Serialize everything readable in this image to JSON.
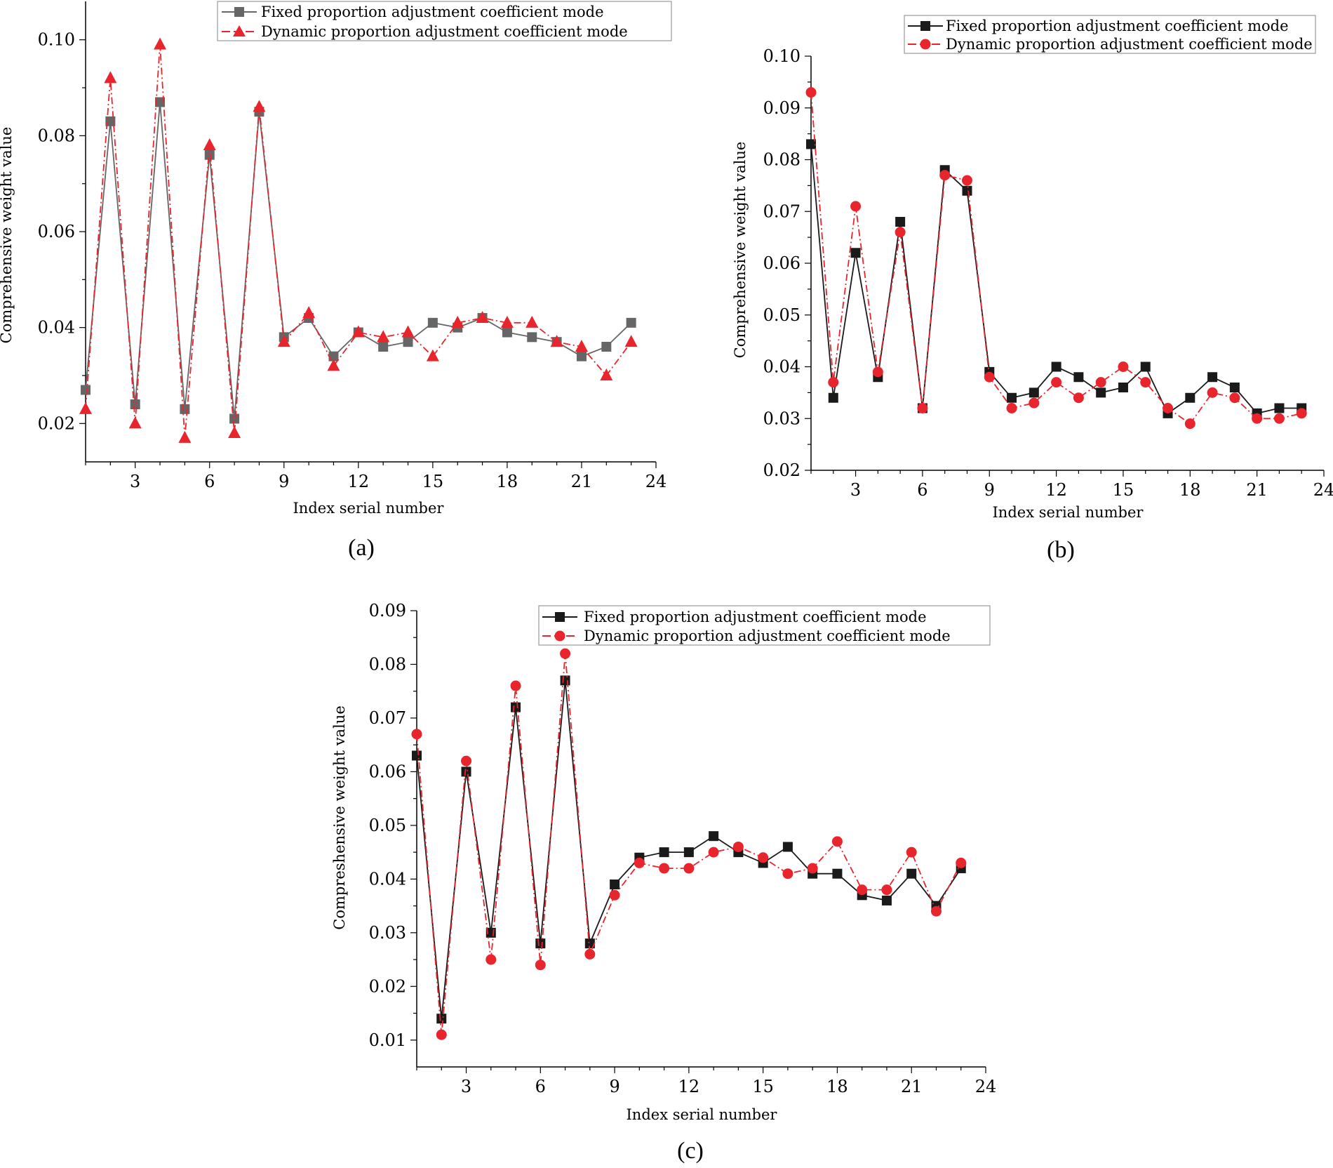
{
  "colors": {
    "fixed_a": "#666666",
    "fixed_bc": "#1a1a1a",
    "dynamic": "#e8242c",
    "axis": "#000000",
    "legend_border": "#999999"
  },
  "chart_data": [
    {
      "id": "a",
      "type": "line",
      "panel_label": "(a)",
      "xlabel": "Index serial number",
      "ylabel": "Comprehensive weight value",
      "xlim": [
        1,
        24
      ],
      "ylim": [
        0.012,
        0.108
      ],
      "xticks": [
        3,
        6,
        9,
        12,
        15,
        18,
        21,
        24
      ],
      "yticks": [
        0.02,
        0.04,
        0.06,
        0.08,
        0.1
      ],
      "ytick_labels": [
        "0.02",
        "0.04",
        "0.06",
        "0.08",
        "0.10"
      ],
      "legend_position": "top-right",
      "x": [
        1,
        2,
        3,
        4,
        5,
        6,
        7,
        8,
        9,
        10,
        11,
        12,
        13,
        14,
        15,
        16,
        17,
        18,
        19,
        20,
        21,
        22,
        23
      ],
      "series": [
        {
          "name": "Fixed proportion adjustment coefficient mode",
          "marker": "square",
          "line": "solid",
          "color": "#666666",
          "values": [
            0.027,
            0.083,
            0.024,
            0.087,
            0.023,
            0.076,
            0.021,
            0.085,
            0.038,
            0.042,
            0.034,
            0.039,
            0.036,
            0.037,
            0.041,
            0.04,
            0.042,
            0.039,
            0.038,
            0.037,
            0.034,
            0.036,
            0.041
          ]
        },
        {
          "name": "Dynamic proportion adjustment coefficient mode",
          "marker": "triangle",
          "line": "dashdot",
          "color": "#e8242c",
          "values": [
            0.023,
            0.092,
            0.02,
            0.099,
            0.017,
            0.078,
            0.018,
            0.086,
            0.037,
            0.043,
            0.032,
            0.039,
            0.038,
            0.039,
            0.034,
            0.041,
            0.042,
            0.041,
            0.041,
            0.037,
            0.036,
            0.03,
            0.037
          ]
        }
      ]
    },
    {
      "id": "b",
      "type": "line",
      "panel_label": "(b)",
      "xlabel": "Index serial number",
      "ylabel": "Comprehensive weight value",
      "xlim": [
        1,
        24
      ],
      "ylim": [
        0.02,
        0.1
      ],
      "xticks": [
        3,
        6,
        9,
        12,
        15,
        18,
        21,
        24
      ],
      "yticks": [
        0.02,
        0.03,
        0.04,
        0.05,
        0.06,
        0.07,
        0.08,
        0.09,
        0.1
      ],
      "ytick_labels": [
        "0.02",
        "0.03",
        "0.04",
        "0.05",
        "0.06",
        "0.07",
        "0.08",
        "0.09",
        "0.10"
      ],
      "legend_position": "top-right",
      "x": [
        1,
        2,
        3,
        4,
        5,
        6,
        7,
        8,
        9,
        10,
        11,
        12,
        13,
        14,
        15,
        16,
        17,
        18,
        19,
        20,
        21,
        22,
        23
      ],
      "series": [
        {
          "name": "Fixed proportion adjustment coefficient mode",
          "marker": "square",
          "line": "solid",
          "color": "#1a1a1a",
          "values": [
            0.083,
            0.034,
            0.062,
            0.038,
            0.068,
            0.032,
            0.078,
            0.074,
            0.039,
            0.034,
            0.035,
            0.04,
            0.038,
            0.035,
            0.036,
            0.04,
            0.031,
            0.034,
            0.038,
            0.036,
            0.031,
            0.032,
            0.032
          ]
        },
        {
          "name": "Dynamic proportion adjustment coefficient mode",
          "marker": "circle",
          "line": "dashdot",
          "color": "#e8242c",
          "values": [
            0.093,
            0.037,
            0.071,
            0.039,
            0.066,
            0.032,
            0.077,
            0.076,
            0.038,
            0.032,
            0.033,
            0.037,
            0.034,
            0.037,
            0.04,
            0.037,
            0.032,
            0.029,
            0.035,
            0.034,
            0.03,
            0.03,
            0.031
          ]
        }
      ]
    },
    {
      "id": "c",
      "type": "line",
      "panel_label": "(c)",
      "xlabel": "Index serial number",
      "ylabel": "Compreshensive weight value",
      "xlim": [
        1,
        24
      ],
      "ylim": [
        0.005,
        0.09
      ],
      "xticks": [
        3,
        6,
        9,
        12,
        15,
        18,
        21,
        24
      ],
      "yticks": [
        0.01,
        0.02,
        0.03,
        0.04,
        0.05,
        0.06,
        0.07,
        0.08,
        0.09
      ],
      "ytick_labels": [
        "0.01",
        "0.02",
        "0.03",
        "0.04",
        "0.05",
        "0.06",
        "0.07",
        "0.08",
        "0.09"
      ],
      "legend_position": "top-right",
      "x": [
        1,
        2,
        3,
        4,
        5,
        6,
        7,
        8,
        9,
        10,
        11,
        12,
        13,
        14,
        15,
        16,
        17,
        18,
        19,
        20,
        21,
        22,
        23
      ],
      "series": [
        {
          "name": "Fixed proportion adjustment coefficient mode",
          "marker": "square",
          "line": "solid",
          "color": "#1a1a1a",
          "values": [
            0.063,
            0.014,
            0.06,
            0.03,
            0.072,
            0.028,
            0.077,
            0.028,
            0.039,
            0.044,
            0.045,
            0.045,
            0.048,
            0.045,
            0.043,
            0.046,
            0.041,
            0.041,
            0.037,
            0.036,
            0.041,
            0.035,
            0.042
          ]
        },
        {
          "name": "Dynamic proportion adjustment coefficient mode",
          "marker": "circle",
          "line": "dashdot",
          "color": "#e8242c",
          "values": [
            0.067,
            0.011,
            0.062,
            0.025,
            0.076,
            0.024,
            0.082,
            0.026,
            0.037,
            0.043,
            0.042,
            0.042,
            0.045,
            0.046,
            0.044,
            0.041,
            0.042,
            0.047,
            0.038,
            0.038,
            0.045,
            0.034,
            0.043
          ]
        }
      ]
    }
  ]
}
